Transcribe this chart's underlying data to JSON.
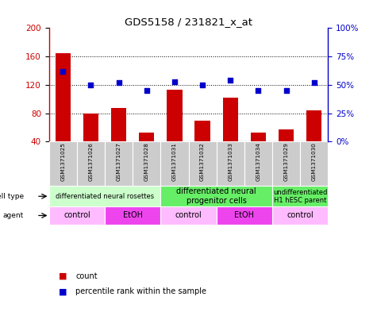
{
  "title": "GDS5158 / 231821_x_at",
  "samples": [
    "GSM1371025",
    "GSM1371026",
    "GSM1371027",
    "GSM1371028",
    "GSM1371031",
    "GSM1371032",
    "GSM1371033",
    "GSM1371034",
    "GSM1371029",
    "GSM1371030"
  ],
  "counts": [
    165,
    80,
    87,
    53,
    113,
    70,
    102,
    53,
    57,
    84
  ],
  "percentile_pct": [
    62,
    50,
    52,
    45,
    53,
    50,
    54,
    45,
    45,
    52
  ],
  "ylim_left": [
    40,
    200
  ],
  "ylim_right": [
    0,
    100
  ],
  "yticks_left": [
    40,
    80,
    120,
    160,
    200
  ],
  "yticks_right": [
    0,
    25,
    50,
    75,
    100
  ],
  "bar_color": "#cc0000",
  "dot_color": "#0000cc",
  "cell_type_groups": [
    {
      "label": "differentiated neural rosettes",
      "start": 0,
      "end": 4,
      "color": "#ccffcc",
      "fontsize": 6
    },
    {
      "label": "differentiated neural\nprogenitor cells",
      "start": 4,
      "end": 8,
      "color": "#66ee66",
      "fontsize": 7
    },
    {
      "label": "undifferentiated\nH1 hESC parent",
      "start": 8,
      "end": 10,
      "color": "#66ee66",
      "fontsize": 6
    }
  ],
  "agent_groups": [
    {
      "label": "control",
      "start": 0,
      "end": 2,
      "color": "#ffbbff"
    },
    {
      "label": "EtOH",
      "start": 2,
      "end": 4,
      "color": "#ee44ee"
    },
    {
      "label": "control",
      "start": 4,
      "end": 6,
      "color": "#ffbbff"
    },
    {
      "label": "EtOH",
      "start": 6,
      "end": 8,
      "color": "#ee44ee"
    },
    {
      "label": "control",
      "start": 8,
      "end": 10,
      "color": "#ffbbff"
    }
  ],
  "cell_type_label": "cell type",
  "agent_label": "agent",
  "legend_count_label": "count",
  "legend_pct_label": "percentile rank within the sample",
  "tick_label_color": "#cc0000",
  "right_tick_color": "#0000cc",
  "xlabel_bg": "#cccccc"
}
